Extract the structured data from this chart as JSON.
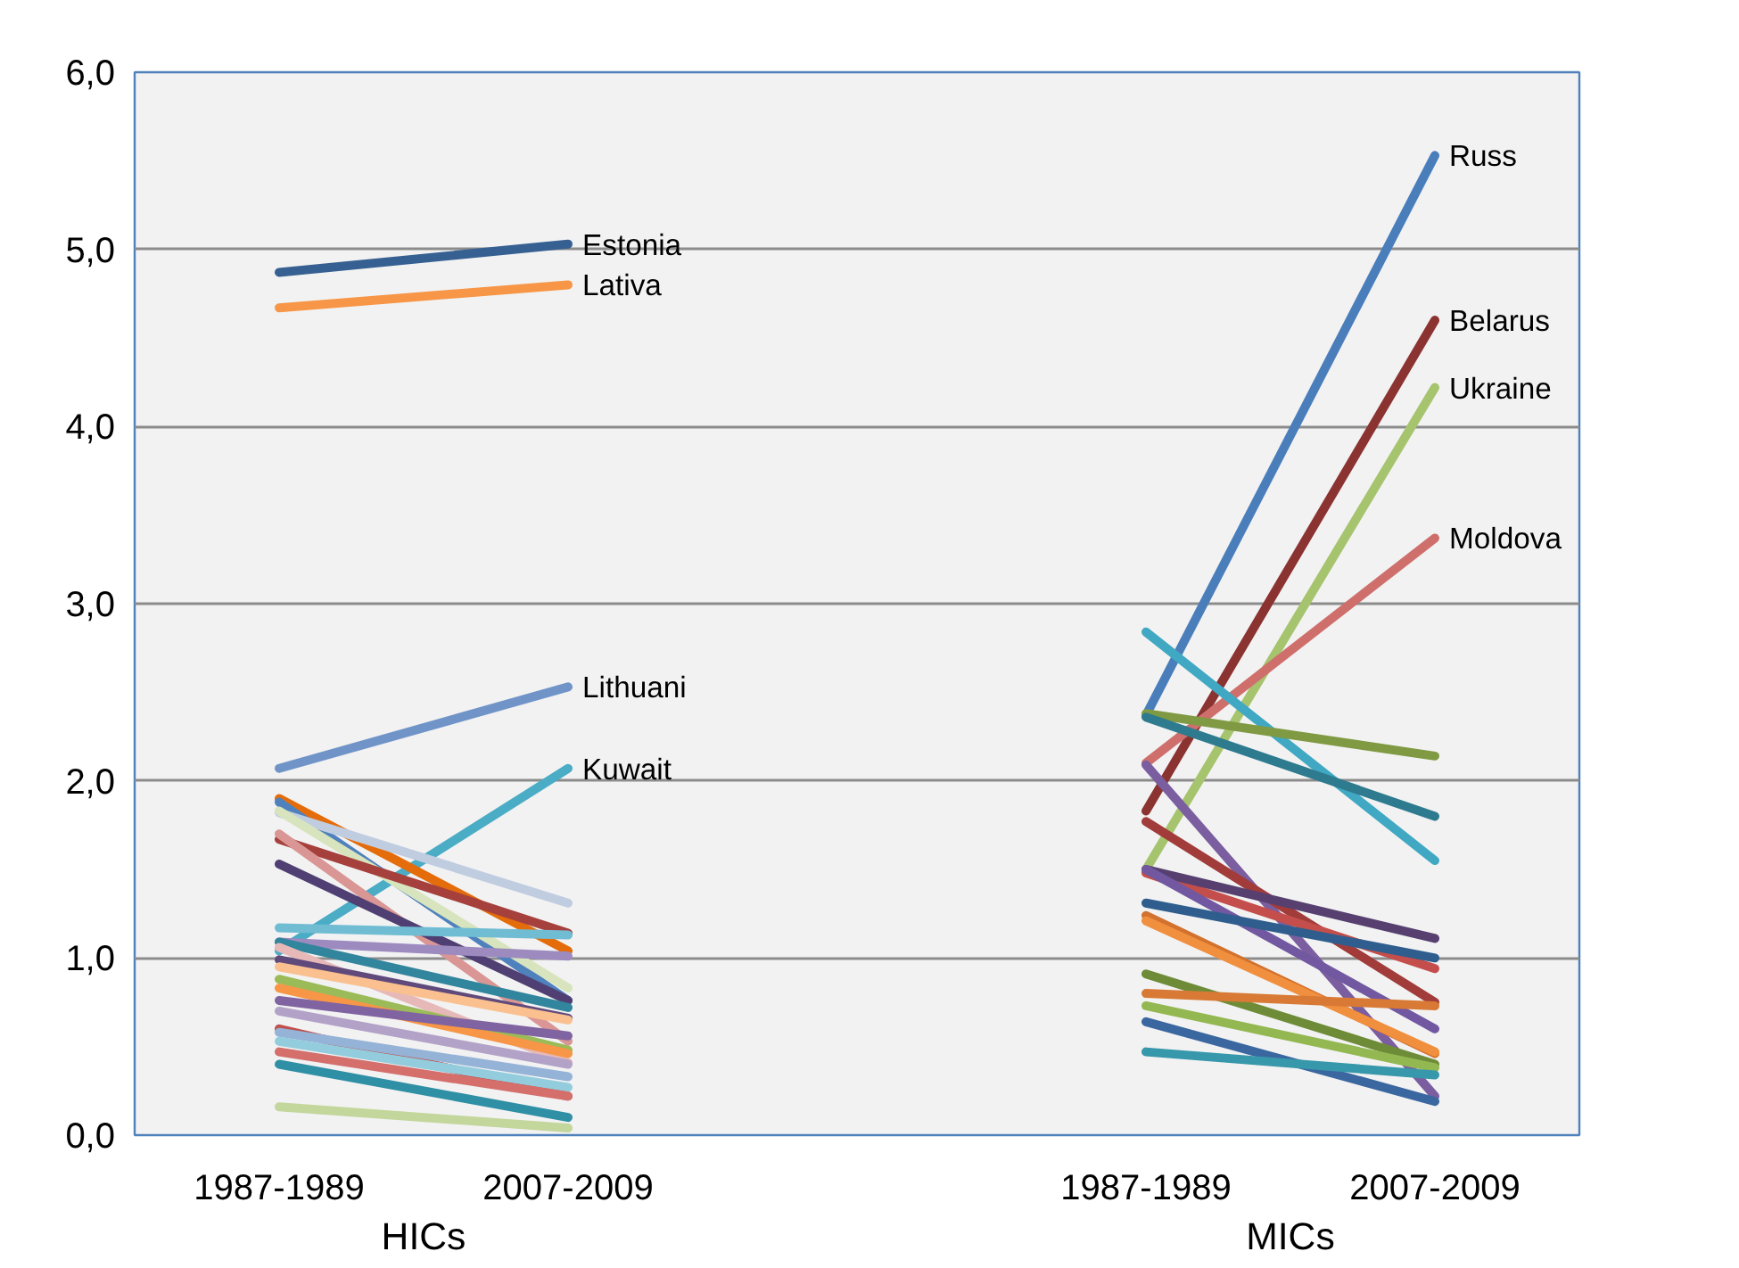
{
  "chart_data": {
    "type": "line",
    "categories": [
      "1987-1989",
      "2007-2009",
      null,
      "1987-1989",
      "2007-2009"
    ],
    "ylim": [
      0,
      6
    ],
    "yticks": [
      {
        "value": 0,
        "label": "0,0"
      },
      {
        "value": 1,
        "label": "1,0"
      },
      {
        "value": 2,
        "label": "2,0"
      },
      {
        "value": 3,
        "label": "3,0"
      },
      {
        "value": 4,
        "label": "4,0"
      },
      {
        "value": 5,
        "label": "5,0"
      },
      {
        "value": 6,
        "label": "6,0"
      }
    ],
    "grid": "y",
    "legend": false,
    "marker": "none",
    "line_style": "solid",
    "annotations": [
      "HICs",
      "MICs"
    ],
    "series": [
      {
        "name": "Estonia",
        "color": "#376092",
        "values": [
          4.87,
          5.03,
          null,
          null,
          null
        ]
      },
      {
        "name": "Lativa",
        "color": "#f79646",
        "values": [
          4.67,
          4.8,
          null,
          null,
          null
        ]
      },
      {
        "name": "Lithuani",
        "color": "#7094c8",
        "values": [
          2.07,
          2.53,
          null,
          null,
          null
        ]
      },
      {
        "name": "Kuwait",
        "color": "#4bacc6",
        "values": [
          1.04,
          2.07,
          null,
          null,
          null
        ]
      },
      {
        "color": "#e46c0a",
        "values": [
          1.9,
          1.04,
          null,
          null,
          null
        ]
      },
      {
        "color": "#4f81bd",
        "values": [
          1.88,
          0.76,
          null,
          null,
          null
        ]
      },
      {
        "color": "#c0cde0",
        "values": [
          1.82,
          1.31,
          null,
          null,
          null
        ]
      },
      {
        "color": "#d7e4bd",
        "values": [
          1.83,
          0.83,
          null,
          null,
          null
        ]
      },
      {
        "color": "#a5403d",
        "values": [
          1.67,
          1.14,
          null,
          null,
          null
        ]
      },
      {
        "color": "#d99694",
        "values": [
          1.7,
          0.53,
          null,
          null,
          null
        ]
      },
      {
        "color": "#4f3f72",
        "values": [
          1.53,
          0.76,
          null,
          null,
          null
        ]
      },
      {
        "color": "#6fbcd3",
        "values": [
          1.17,
          1.13,
          null,
          null,
          null
        ]
      },
      {
        "color": "#9d8bc0",
        "values": [
          1.09,
          1.01,
          null,
          null,
          null
        ]
      },
      {
        "color": "#31859c",
        "values": [
          1.09,
          0.72,
          null,
          null,
          null
        ]
      },
      {
        "color": "#e6b9b8",
        "values": [
          1.06,
          0.41,
          null,
          null,
          null
        ]
      },
      {
        "color": "#604a7b",
        "values": [
          0.99,
          0.66,
          null,
          null,
          null
        ]
      },
      {
        "color": "#fac090",
        "values": [
          0.95,
          0.65,
          null,
          null,
          null
        ]
      },
      {
        "color": "#9bbb59",
        "values": [
          0.88,
          0.48,
          null,
          null,
          null
        ]
      },
      {
        "color": "#f79646",
        "values": [
          0.83,
          0.46,
          null,
          null,
          null
        ]
      },
      {
        "color": "#8064a2",
        "values": [
          0.76,
          0.56,
          null,
          null,
          null
        ]
      },
      {
        "color": "#b3a2c7",
        "values": [
          0.7,
          0.4,
          null,
          null,
          null
        ]
      },
      {
        "color": "#c0504d",
        "values": [
          0.6,
          0.22,
          null,
          null,
          null
        ]
      },
      {
        "color": "#95b3d7",
        "values": [
          0.58,
          0.33,
          null,
          null,
          null
        ]
      },
      {
        "color": "#93cddd",
        "values": [
          0.53,
          0.27,
          null,
          null,
          null
        ]
      },
      {
        "color": "#d46f6c",
        "values": [
          0.47,
          0.22,
          null,
          null,
          null
        ]
      },
      {
        "color": "#2f8fa5",
        "values": [
          0.4,
          0.1,
          null,
          null,
          null
        ]
      },
      {
        "color": "#c3d69b",
        "values": [
          0.16,
          0.04,
          null,
          null,
          null
        ]
      },
      {
        "name": "Russ",
        "color": "#4a7ebb",
        "values": [
          null,
          null,
          null,
          2.37,
          5.53
        ]
      },
      {
        "name": "Belarus",
        "color": "#8b3331",
        "values": [
          null,
          null,
          null,
          1.83,
          4.6
        ]
      },
      {
        "name": "Ukraine",
        "color": "#a6c46e",
        "values": [
          null,
          null,
          null,
          1.5,
          4.22
        ]
      },
      {
        "name": "Moldova",
        "color": "#cf6f6c",
        "values": [
          null,
          null,
          null,
          2.1,
          3.37
        ]
      },
      {
        "color": "#40a8c2",
        "values": [
          null,
          null,
          null,
          2.84,
          1.55
        ]
      },
      {
        "color": "#7f9a42",
        "values": [
          null,
          null,
          null,
          2.38,
          2.14
        ]
      },
      {
        "color": "#2e7b8f",
        "values": [
          null,
          null,
          null,
          2.36,
          1.8
        ]
      },
      {
        "color": "#7a5ea0",
        "values": [
          null,
          null,
          null,
          2.09,
          0.22
        ]
      },
      {
        "color": "#a13c3a",
        "values": [
          null,
          null,
          null,
          1.77,
          0.75
        ]
      },
      {
        "color": "#c44e4b",
        "values": [
          null,
          null,
          null,
          1.48,
          0.94
        ]
      },
      {
        "color": "#574070",
        "values": [
          null,
          null,
          null,
          1.5,
          1.11
        ]
      },
      {
        "color": "#7158a0",
        "values": [
          null,
          null,
          null,
          1.5,
          0.6
        ]
      },
      {
        "color": "#2f5e8e",
        "values": [
          null,
          null,
          null,
          1.31,
          1.0
        ]
      },
      {
        "color": "#d2722e",
        "values": [
          null,
          null,
          null,
          1.24,
          0.46
        ]
      },
      {
        "color": "#f08f3e",
        "values": [
          null,
          null,
          null,
          1.21,
          0.47
        ]
      },
      {
        "color": "#6e8c38",
        "values": [
          null,
          null,
          null,
          0.91,
          0.4
        ]
      },
      {
        "color": "#d87a35",
        "values": [
          null,
          null,
          null,
          0.8,
          0.73
        ]
      },
      {
        "color": "#93b852",
        "values": [
          null,
          null,
          null,
          0.73,
          0.38
        ]
      },
      {
        "color": "#3b67a0",
        "values": [
          null,
          null,
          null,
          0.64,
          0.19
        ]
      },
      {
        "color": "#3797ab",
        "values": [
          null,
          null,
          null,
          0.47,
          0.34
        ]
      }
    ]
  }
}
